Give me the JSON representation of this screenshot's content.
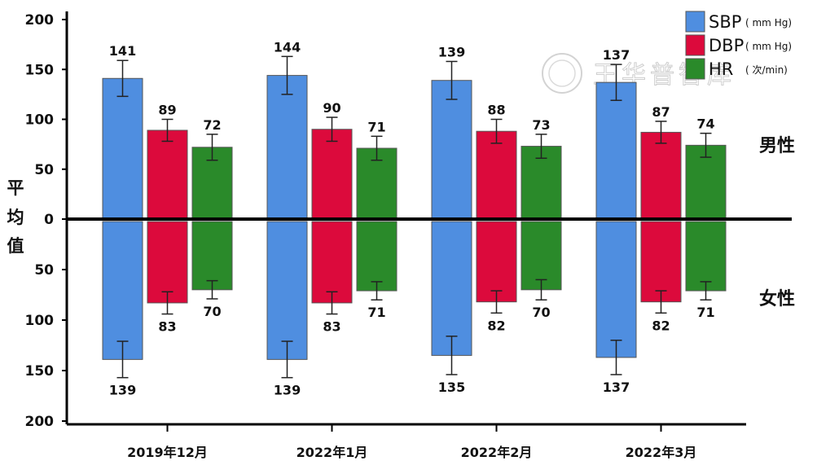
{
  "chart_data": {
    "type": "bar",
    "title": "",
    "ylabel": "平均值",
    "ylim": [
      -200,
      200
    ],
    "yticks": [
      {
        "value": 200,
        "label": "200"
      },
      {
        "value": 150,
        "label": "150"
      },
      {
        "value": 100,
        "label": "100"
      },
      {
        "value": 50,
        "label": "50"
      },
      {
        "value": 0,
        "label": "0"
      },
      {
        "value": -50,
        "label": "50"
      },
      {
        "value": -100,
        "label": "100"
      },
      {
        "value": -150,
        "label": "150"
      },
      {
        "value": -200,
        "label": "200"
      }
    ],
    "categories": [
      "2019年12月",
      "2022年1月",
      "2022年2月",
      "2022年3月"
    ],
    "side_labels": {
      "upper": "男性",
      "lower": "女性"
    },
    "series": [
      {
        "name": "SBP",
        "unit": "( mm Hg)",
        "color": "#4f8ee0",
        "male": [
          141,
          144,
          139,
          137
        ],
        "male_err": [
          18,
          19,
          19,
          18
        ],
        "female": [
          139,
          139,
          135,
          137
        ],
        "female_err": [
          18,
          18,
          19,
          17
        ]
      },
      {
        "name": "DBP",
        "unit": "( mm Hg)",
        "color": "#dc0a3c",
        "male": [
          89,
          90,
          88,
          87
        ],
        "male_err": [
          11,
          12,
          12,
          11
        ],
        "female": [
          83,
          83,
          82,
          82
        ],
        "female_err": [
          11,
          11,
          11,
          11
        ]
      },
      {
        "name": "HR",
        "unit": "( 次/min)",
        "color": "#2a8a2a",
        "male": [
          72,
          71,
          73,
          74
        ],
        "male_err": [
          13,
          12,
          12,
          12
        ],
        "female": [
          70,
          71,
          70,
          71
        ],
        "female_err": [
          9,
          9,
          10,
          9
        ]
      }
    ]
  }
}
